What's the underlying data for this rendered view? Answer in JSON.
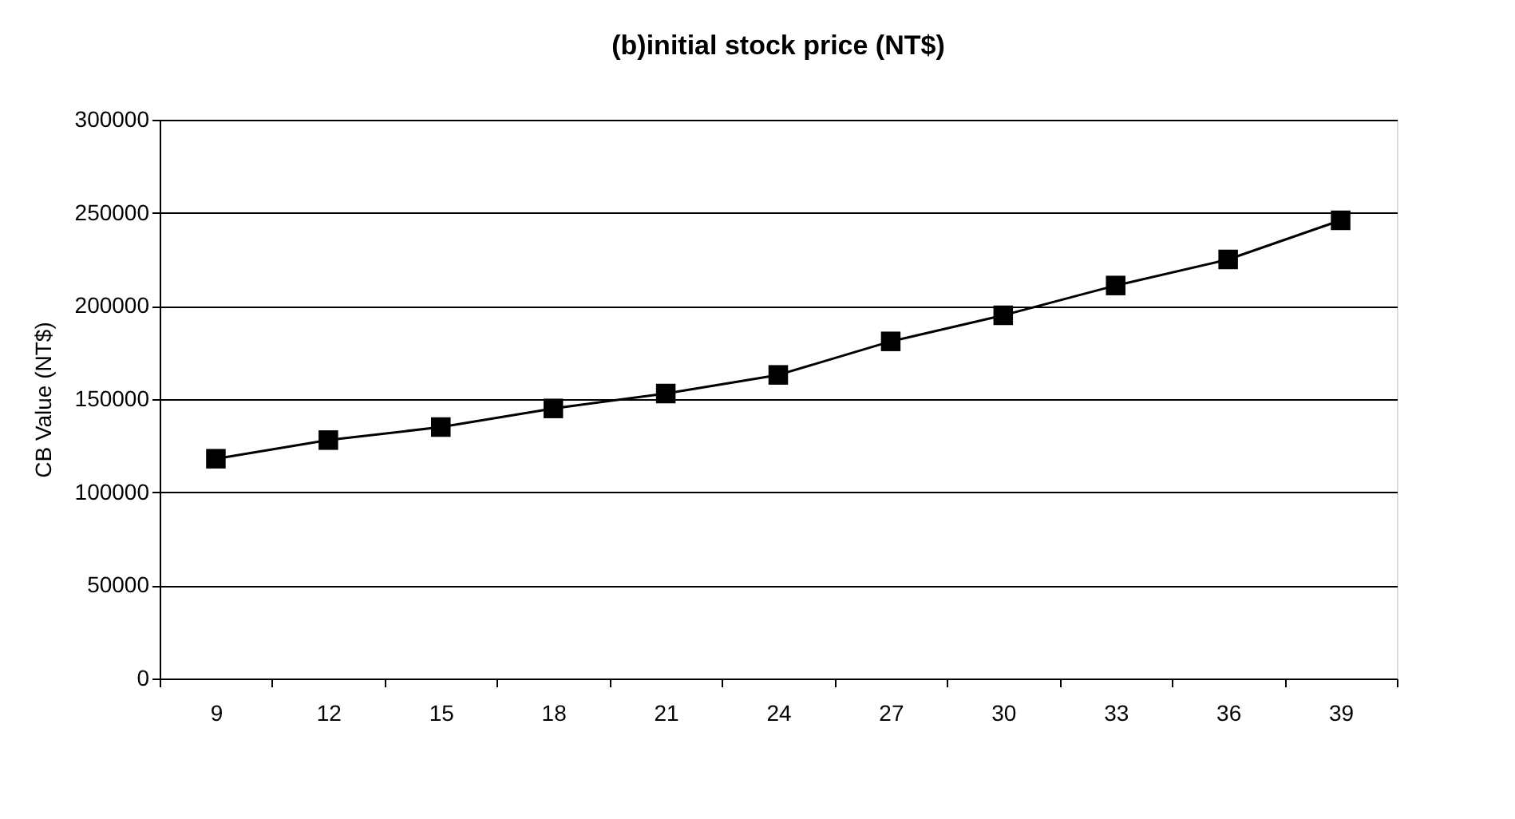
{
  "chart_data": {
    "type": "line",
    "title": "(b)initial stock price (NT$)",
    "ylabel": "CB Value (NT$)",
    "categories": [
      "9",
      "12",
      "15",
      "18",
      "21",
      "24",
      "27",
      "30",
      "33",
      "36",
      "39"
    ],
    "series": [
      {
        "color": "#000000",
        "values": [
          118000,
          128000,
          135000,
          145000,
          153000,
          163000,
          181000,
          195000,
          211000,
          225000,
          246000
        ]
      }
    ],
    "ylim": [
      0,
      300000
    ],
    "yticks": [
      0,
      50000,
      100000,
      150000,
      200000,
      250000,
      300000
    ],
    "grid": "y",
    "marker": "square",
    "line_style": "solid",
    "legend": false
  }
}
